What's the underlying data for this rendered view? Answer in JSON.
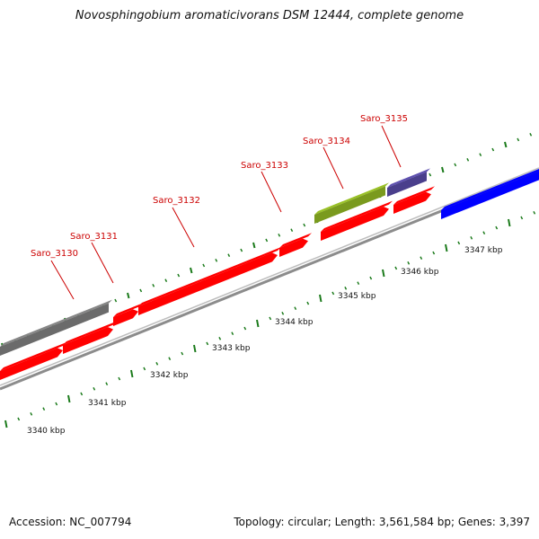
{
  "title": "Novosphingobium aromaticivorans DSM 12444, complete genome",
  "footer": {
    "accession": "Accession: NC_007794",
    "topology": "Topology: circular; Length: 3,561,584 bp; Genes: 3,397"
  },
  "ruler_labels": [
    "3340 kbp",
    "3341 kbp",
    "3342 kbp",
    "3343 kbp",
    "3344 kbp",
    "3345 kbp",
    "3346 kbp",
    "3347 kbp"
  ],
  "gene_labels": [
    "Saro_3130",
    "Saro_3131",
    "Saro_3132",
    "Saro_3133",
    "Saro_3134",
    "Saro_3135"
  ],
  "colors": {
    "cds": "#ff0000",
    "gray_feature": "#6b6b6b",
    "green_feature": "#7a9a1e",
    "purple_feature": "#4a3f8c",
    "blue_feature": "#0000ff",
    "backbone": "#8c8c8c",
    "tick": "#1a7a1a",
    "label_line": "#cc0000"
  }
}
